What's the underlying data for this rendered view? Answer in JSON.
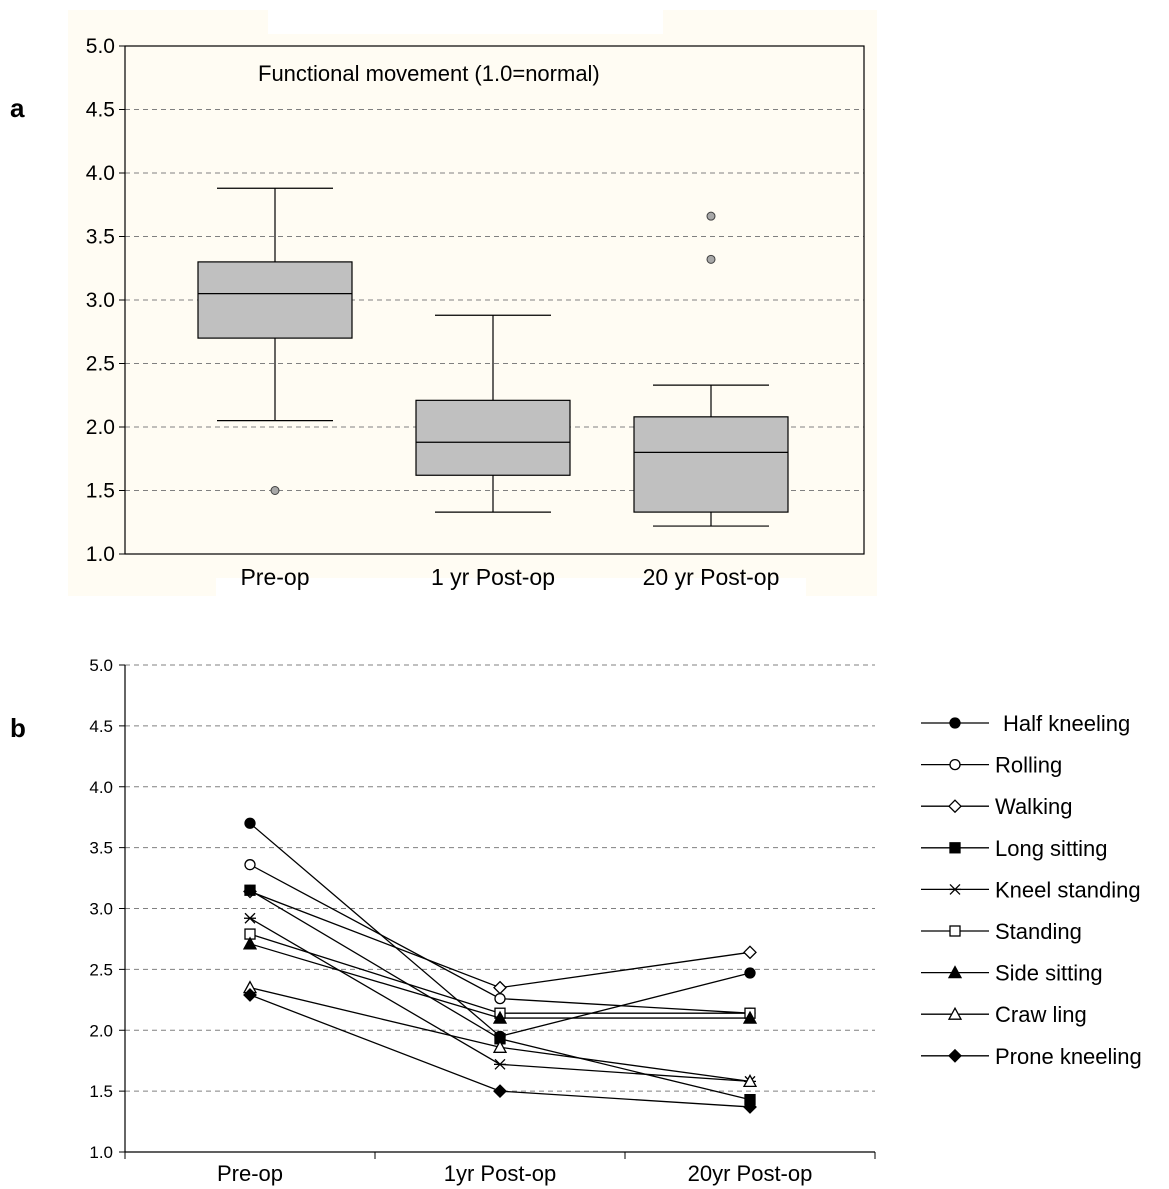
{
  "panels": {
    "a_label": "a",
    "b_label": "b"
  },
  "colors": {
    "box_fill": "#c0c0c0",
    "background_tint": "#fffcf3",
    "grid": "#808080"
  },
  "chart_data": [
    {
      "type": "box",
      "title": "Functional movement (1.0=normal)",
      "categories": [
        "Pre-op",
        "1 yr Post-op",
        "20 yr Post-op"
      ],
      "y_ticks": [
        "1.0",
        "1.5",
        "2.0",
        "2.5",
        "3.0",
        "3.5",
        "4.0",
        "4.5",
        "5.0"
      ],
      "ylim": [
        1.0,
        5.0
      ],
      "grid": "horizontal dashed",
      "boxes": [
        {
          "category": "Pre-op",
          "min": 2.05,
          "q1": 2.7,
          "median": 3.05,
          "q3": 3.3,
          "max": 3.88,
          "outliers": [
            1.5
          ]
        },
        {
          "category": "1 yr Post-op",
          "min": 1.33,
          "q1": 1.62,
          "median": 1.88,
          "q3": 2.21,
          "max": 2.88,
          "outliers": []
        },
        {
          "category": "20 yr Post-op",
          "min": 1.22,
          "q1": 1.33,
          "median": 1.8,
          "q3": 2.08,
          "max": 2.33,
          "outliers": [
            3.32,
            3.66
          ]
        }
      ]
    },
    {
      "type": "line",
      "categories": [
        "Pre-op",
        "1yr Post-op",
        "20yr Post-op"
      ],
      "y_ticks": [
        "1.0",
        "1.5",
        "2.0",
        "2.5",
        "3.0",
        "3.5",
        "4.0",
        "4.5",
        "5.0"
      ],
      "ylim": [
        1.0,
        5.0
      ],
      "grid": "horizontal dashed",
      "legend_position": "right",
      "series": [
        {
          "name": "Half kneeling",
          "marker": "filled-circle",
          "values": [
            3.7,
            1.95,
            2.47
          ]
        },
        {
          "name": "Rolling",
          "marker": "open-circle",
          "values": [
            3.36,
            2.26,
            2.14
          ]
        },
        {
          "name": "Walking",
          "marker": "open-diamond",
          "values": [
            3.14,
            2.35,
            2.64
          ]
        },
        {
          "name": "Long sitting",
          "marker": "filled-square",
          "values": [
            3.15,
            1.93,
            1.43
          ]
        },
        {
          "name": "Kneel standing",
          "marker": "asterisk",
          "values": [
            2.92,
            1.72,
            1.58
          ]
        },
        {
          "name": "Standing",
          "marker": "open-square",
          "values": [
            2.79,
            2.14,
            2.14
          ]
        },
        {
          "name": "Side sitting",
          "marker": "filled-triangle",
          "values": [
            2.71,
            2.1,
            2.1
          ]
        },
        {
          "name": "Craw ling",
          "marker": "open-triangle",
          "values": [
            2.35,
            1.86,
            1.58
          ]
        },
        {
          "name": "Prone kneeling",
          "marker": "filled-diamond",
          "values": [
            2.29,
            1.5,
            1.37
          ]
        }
      ]
    }
  ]
}
